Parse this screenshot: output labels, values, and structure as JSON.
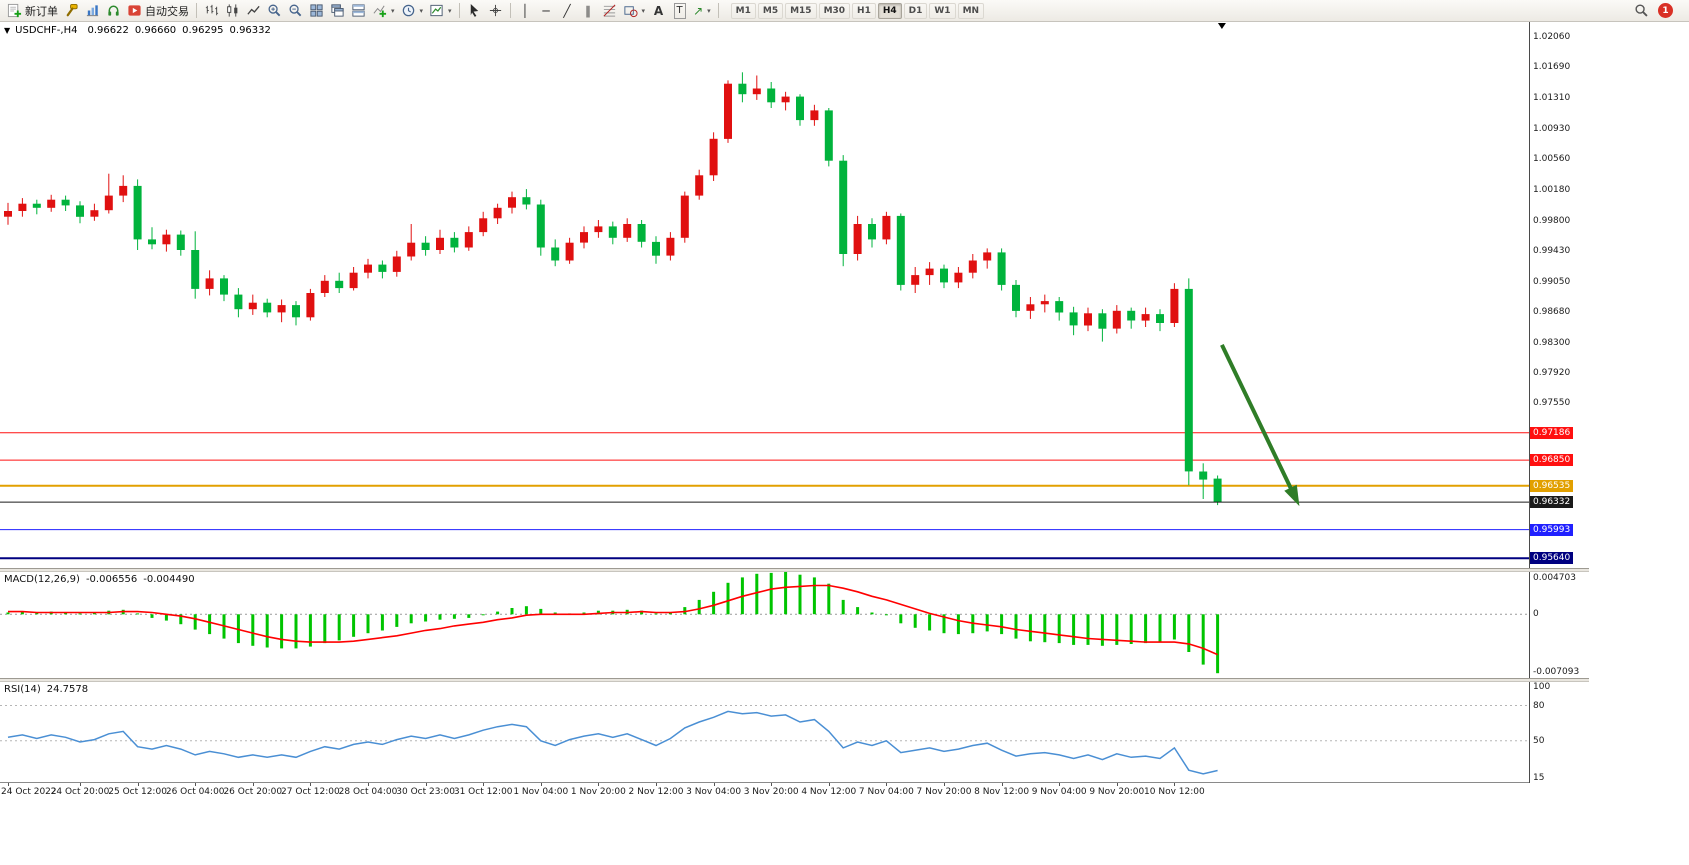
{
  "toolbar": {
    "new_order": "新订单",
    "auto_trading": "自动交易",
    "timeframes": [
      "M1",
      "M5",
      "M15",
      "M30",
      "H1",
      "H4",
      "D1",
      "W1",
      "MN"
    ],
    "active_timeframe": "H4",
    "notification_count": "1"
  },
  "icons": {
    "symbol_marker": "▼",
    "vline": "│",
    "hline": "─",
    "tline": "╱",
    "channel": "∥",
    "text_a": "A",
    "text_t": "T",
    "arrow_tool": "↗",
    "caret": "▾"
  },
  "chart_header": {
    "symbol": "USDCHF-,H4",
    "open": "0.96622",
    "high": "0.96660",
    "low": "0.96295",
    "close": "0.96332"
  },
  "indicators": {
    "macd_label": "MACD(12,26,9)",
    "macd_value": "-0.006556",
    "macd_signal_value": "-0.004490",
    "rsi_label": "RSI(14)",
    "rsi_value": "24.7578"
  },
  "colors": {
    "bull_candle": "#e01010",
    "bear_candle": "#00b33c",
    "macd_hist": "#00c400",
    "macd_signal": "#ff0000",
    "rsi_line": "#4a8fd4",
    "arrow": "#2f7d27"
  },
  "chart_data": [
    {
      "type": "candlestick",
      "name": "USDCHF-,H4",
      "ylim": [
        0.9552,
        1.0225
      ],
      "up_color": "#e01010",
      "down_color": "#00b33c",
      "y_ticks": [
        "1.02060",
        "1.01690",
        "1.01310",
        "1.00930",
        "1.00560",
        "1.00180",
        "0.99800",
        "0.99430",
        "0.99050",
        "0.98680",
        "0.98300",
        "0.97920",
        "0.97550"
      ],
      "levels": [
        {
          "price": 0.97186,
          "label": "0.97186",
          "color": "#ff1010",
          "width": 1
        },
        {
          "price": 0.9685,
          "label": "0.96850",
          "color": "#ff1010",
          "width": 1
        },
        {
          "price": 0.96535,
          "label": "0.96535",
          "color": "#e2a000",
          "width": 2
        },
        {
          "price": 0.96332,
          "label": "0.96332",
          "color": "#1a1a1a",
          "width": 1,
          "role": "bid"
        },
        {
          "price": 0.95993,
          "label": "0.95993",
          "color": "#2020ff",
          "width": 1
        },
        {
          "price": 0.9564,
          "label": "0.95640",
          "color": "#000080",
          "width": 2
        }
      ],
      "shift_marker_x_bar": 84.3,
      "arrow": {
        "x1_bar": 84.3,
        "price1": 0.9827,
        "x2_bar": 89.5,
        "price2": 0.9635,
        "color": "#2f7d27"
      },
      "candles": [
        [
          0.9985,
          1.0002,
          0.9975,
          0.9992
        ],
        [
          0.9992,
          1.0008,
          0.9985,
          1.0001
        ],
        [
          1.0001,
          1.0006,
          0.9988,
          0.9996
        ],
        [
          0.9996,
          1.0012,
          0.9991,
          1.0006
        ],
        [
          1.0006,
          1.0011,
          0.9992,
          0.9999
        ],
        [
          0.9999,
          1.0004,
          0.9977,
          0.9985
        ],
        [
          0.9985,
          1.0001,
          0.998,
          0.9993
        ],
        [
          0.9993,
          1.0038,
          0.9989,
          1.0011
        ],
        [
          1.0011,
          1.0036,
          1.0003,
          1.0023
        ],
        [
          1.0023,
          1.0031,
          0.9944,
          0.9957
        ],
        [
          0.9957,
          0.9972,
          0.9945,
          0.9951
        ],
        [
          0.9951,
          0.9969,
          0.9942,
          0.9963
        ],
        [
          0.9963,
          0.9968,
          0.9937,
          0.9944
        ],
        [
          0.9944,
          0.9967,
          0.9884,
          0.9896
        ],
        [
          0.9896,
          0.9919,
          0.9888,
          0.9909
        ],
        [
          0.9909,
          0.9913,
          0.9881,
          0.9889
        ],
        [
          0.9889,
          0.9897,
          0.9861,
          0.9871
        ],
        [
          0.9871,
          0.9889,
          0.9864,
          0.9879
        ],
        [
          0.9879,
          0.9884,
          0.9861,
          0.9867
        ],
        [
          0.9867,
          0.9883,
          0.9855,
          0.9876
        ],
        [
          0.9876,
          0.9881,
          0.9851,
          0.9861
        ],
        [
          0.9861,
          0.9896,
          0.9857,
          0.9891
        ],
        [
          0.9891,
          0.9913,
          0.9886,
          0.9906
        ],
        [
          0.9906,
          0.9916,
          0.9891,
          0.9897
        ],
        [
          0.9897,
          0.9923,
          0.9894,
          0.9916
        ],
        [
          0.9916,
          0.9933,
          0.9909,
          0.9926
        ],
        [
          0.9926,
          0.9931,
          0.9909,
          0.9917
        ],
        [
          0.9917,
          0.9943,
          0.9911,
          0.9936
        ],
        [
          0.9936,
          0.9976,
          0.9931,
          0.9953
        ],
        [
          0.9953,
          0.9961,
          0.9937,
          0.9944
        ],
        [
          0.9944,
          0.9969,
          0.9939,
          0.9959
        ],
        [
          0.9959,
          0.9966,
          0.9941,
          0.9947
        ],
        [
          0.9947,
          0.9973,
          0.9943,
          0.9966
        ],
        [
          0.9966,
          0.9991,
          0.9961,
          0.9983
        ],
        [
          0.9983,
          1.0001,
          0.9976,
          0.9996
        ],
        [
          0.9996,
          1.0016,
          0.9989,
          1.0009
        ],
        [
          1.0009,
          1.0019,
          0.9994,
          1.0
        ],
        [
          1.0,
          1.0006,
          0.9937,
          0.9947
        ],
        [
          0.9947,
          0.9957,
          0.9924,
          0.9931
        ],
        [
          0.9931,
          0.9959,
          0.9927,
          0.9953
        ],
        [
          0.9953,
          0.9973,
          0.9946,
          0.9966
        ],
        [
          0.9966,
          0.9981,
          0.9959,
          0.9973
        ],
        [
          0.9973,
          0.9979,
          0.9951,
          0.9959
        ],
        [
          0.9959,
          0.9983,
          0.9954,
          0.9976
        ],
        [
          0.9976,
          0.9981,
          0.9947,
          0.9954
        ],
        [
          0.9954,
          0.9961,
          0.9927,
          0.9937
        ],
        [
          0.9937,
          0.9966,
          0.9931,
          0.9959
        ],
        [
          0.9959,
          1.0016,
          0.9953,
          1.0011
        ],
        [
          1.0011,
          1.0043,
          1.0006,
          1.0036
        ],
        [
          1.0036,
          1.0089,
          1.0029,
          1.0081
        ],
        [
          1.0081,
          1.0153,
          1.0076,
          1.0149
        ],
        [
          1.0149,
          1.0163,
          1.0126,
          1.0136
        ],
        [
          1.0136,
          1.0159,
          1.0129,
          1.0143
        ],
        [
          1.0143,
          1.0151,
          1.0119,
          1.0126
        ],
        [
          1.0126,
          1.0139,
          1.0116,
          1.0133
        ],
        [
          1.0133,
          1.0136,
          1.0097,
          1.0104
        ],
        [
          1.0104,
          1.0123,
          1.0097,
          1.0116
        ],
        [
          1.0116,
          1.0119,
          1.0047,
          1.0054
        ],
        [
          1.0054,
          1.0061,
          0.9924,
          0.9939
        ],
        [
          0.9939,
          0.9986,
          0.9931,
          0.9976
        ],
        [
          0.9976,
          0.9983,
          0.9947,
          0.9957
        ],
        [
          0.9957,
          0.9991,
          0.9951,
          0.9986
        ],
        [
          0.9986,
          0.9989,
          0.9894,
          0.9901
        ],
        [
          0.9901,
          0.9923,
          0.9891,
          0.9913
        ],
        [
          0.9913,
          0.9929,
          0.9901,
          0.9921
        ],
        [
          0.9921,
          0.9926,
          0.9897,
          0.9904
        ],
        [
          0.9904,
          0.9923,
          0.9897,
          0.9916
        ],
        [
          0.9916,
          0.9939,
          0.9909,
          0.9931
        ],
        [
          0.9931,
          0.9946,
          0.9921,
          0.9941
        ],
        [
          0.9941,
          0.9946,
          0.9894,
          0.9901
        ],
        [
          0.9901,
          0.9907,
          0.9861,
          0.9869
        ],
        [
          0.9869,
          0.9886,
          0.9859,
          0.9877
        ],
        [
          0.9877,
          0.9889,
          0.9867,
          0.9881
        ],
        [
          0.9881,
          0.9886,
          0.9857,
          0.9867
        ],
        [
          0.9867,
          0.9874,
          0.9839,
          0.9851
        ],
        [
          0.9851,
          0.9873,
          0.9844,
          0.9866
        ],
        [
          0.9866,
          0.9871,
          0.9831,
          0.9847
        ],
        [
          0.9847,
          0.9876,
          0.9841,
          0.9869
        ],
        [
          0.9869,
          0.9873,
          0.9847,
          0.9857
        ],
        [
          0.9857,
          0.9873,
          0.9849,
          0.9865
        ],
        [
          0.9865,
          0.9871,
          0.9844,
          0.9854
        ],
        [
          0.9854,
          0.9903,
          0.9849,
          0.9896
        ],
        [
          0.9896,
          0.9909,
          0.9654,
          0.9671
        ],
        [
          0.9671,
          0.9681,
          0.9637,
          0.9661
        ],
        [
          0.96622,
          0.9666,
          0.96295,
          0.96332
        ]
      ],
      "x_labels": [
        {
          "i": 0,
          "t": "24 Oct 2022"
        },
        {
          "i": 5,
          "t": "24 Oct 20:00"
        },
        {
          "i": 9,
          "t": "25 Oct 12:00"
        },
        {
          "i": 13,
          "t": "26 Oct 04:00"
        },
        {
          "i": 17,
          "t": "26 Oct 20:00"
        },
        {
          "i": 21,
          "t": "27 Oct 12:00"
        },
        {
          "i": 25,
          "t": "28 Oct 04:00"
        },
        {
          "i": 29,
          "t": "30 Oct 23:00"
        },
        {
          "i": 33,
          "t": "31 Oct 12:00"
        },
        {
          "i": 37,
          "t": "1 Nov 04:00"
        },
        {
          "i": 41,
          "t": "1 Nov 20:00"
        },
        {
          "i": 45,
          "t": "2 Nov 12:00"
        },
        {
          "i": 49,
          "t": "3 Nov 04:00"
        },
        {
          "i": 53,
          "t": "3 Nov 20:00"
        },
        {
          "i": 57,
          "t": "4 Nov 12:00"
        },
        {
          "i": 61,
          "t": "7 Nov 04:00"
        },
        {
          "i": 65,
          "t": "7 Nov 20:00"
        },
        {
          "i": 69,
          "t": "8 Nov 12:00"
        },
        {
          "i": 73,
          "t": "9 Nov 04:00"
        },
        {
          "i": 77,
          "t": "9 Nov 20:00"
        },
        {
          "i": 81,
          "t": "10 Nov 12:00"
        }
      ]
    },
    {
      "type": "macd",
      "name": "MACD(12,26,9)",
      "ylim": [
        -0.007093,
        0.004703
      ],
      "y_ticks": [
        "0.004703",
        "0",
        "-0.007093"
      ],
      "hist_color": "#00c400",
      "signal_color": "#ff0000",
      "hist": [
        0.0002,
        0.0003,
        0.0002,
        0.0003,
        0.0002,
        0.0001,
        0.0002,
        0.0004,
        0.0005,
        0.0001,
        -0.0004,
        -0.0007,
        -0.0011,
        -0.0017,
        -0.0022,
        -0.0027,
        -0.0032,
        -0.0035,
        -0.0037,
        -0.0038,
        -0.0038,
        -0.0036,
        -0.0032,
        -0.0029,
        -0.0025,
        -0.0021,
        -0.0018,
        -0.0014,
        -0.001,
        -0.0008,
        -0.0006,
        -0.0005,
        -0.0004,
        -0.0001,
        0.0003,
        0.0007,
        0.0009,
        0.0006,
        0.0002,
        0.0001,
        0.0002,
        0.0004,
        0.0004,
        0.0005,
        0.0004,
        0.0001,
        0.0002,
        0.0008,
        0.0016,
        0.0025,
        0.0035,
        0.0041,
        0.0045,
        0.0046,
        0.0047,
        0.0044,
        0.0041,
        0.0034,
        0.0016,
        0.0008,
        0.0002,
        0,
        -0.001,
        -0.0015,
        -0.0018,
        -0.0021,
        -0.0022,
        -0.0021,
        -0.0019,
        -0.0022,
        -0.0027,
        -0.003,
        -0.0031,
        -0.0032,
        -0.0034,
        -0.0034,
        -0.0035,
        -0.0034,
        -0.0033,
        -0.0032,
        -0.0031,
        -0.0028,
        -0.0042,
        -0.0056,
        -0.006556
      ],
      "signal": [
        0.0003,
        0.0003,
        0.0002,
        0.0002,
        0.0002,
        0.0002,
        0.0002,
        0.0002,
        0.0003,
        0.0003,
        0.0002,
        0,
        -0.0002,
        -0.0005,
        -0.0009,
        -0.0013,
        -0.0017,
        -0.0021,
        -0.0025,
        -0.0028,
        -0.003,
        -0.0031,
        -0.0031,
        -0.0031,
        -0.003,
        -0.0028,
        -0.0026,
        -0.0024,
        -0.0021,
        -0.0018,
        -0.0016,
        -0.0013,
        -0.0011,
        -0.0009,
        -0.0006,
        -0.0004,
        -0.0001,
        0,
        0,
        0,
        0,
        0.0001,
        0.0002,
        0.0002,
        0.0003,
        0.0002,
        0.0002,
        0.0003,
        0.0006,
        0.001,
        0.0015,
        0.002,
        0.0024,
        0.0028,
        0.003,
        0.0031,
        0.0032,
        0.0032,
        0.0029,
        0.0025,
        0.002,
        0.0016,
        0.0011,
        0.0006,
        0.0001,
        -0.0003,
        -0.0007,
        -0.001,
        -0.0012,
        -0.0014,
        -0.0017,
        -0.0019,
        -0.0021,
        -0.0023,
        -0.0025,
        -0.0027,
        -0.0028,
        -0.0029,
        -0.003,
        -0.0031,
        -0.0031,
        -0.0031,
        -0.0033,
        -0.0038,
        -0.00449
      ]
    },
    {
      "type": "line",
      "name": "RSI(14)",
      "ylim": [
        15,
        100
      ],
      "levels": [
        80,
        50
      ],
      "y_ticks": [
        "100",
        "80",
        "50",
        "15"
      ],
      "y_tick_values": [
        100,
        80,
        50,
        15
      ],
      "line_color": "#4a8fd4",
      "values": [
        53,
        55,
        52,
        55,
        53,
        49,
        51,
        56,
        58,
        45,
        43,
        46,
        43,
        38,
        41,
        39,
        36,
        38,
        36,
        38,
        36,
        41,
        45,
        43,
        47,
        49,
        47,
        51,
        54,
        52,
        55,
        52,
        55,
        59,
        62,
        64,
        62,
        50,
        46,
        51,
        54,
        56,
        53,
        56,
        51,
        46,
        52,
        61,
        66,
        70,
        75,
        73,
        74,
        71,
        72,
        66,
        68,
        58,
        44,
        49,
        46,
        50,
        40,
        42,
        44,
        41,
        43,
        46,
        48,
        42,
        37,
        39,
        40,
        38,
        35,
        38,
        34,
        39,
        36,
        37,
        35,
        44,
        25,
        22,
        24.7578
      ]
    }
  ]
}
